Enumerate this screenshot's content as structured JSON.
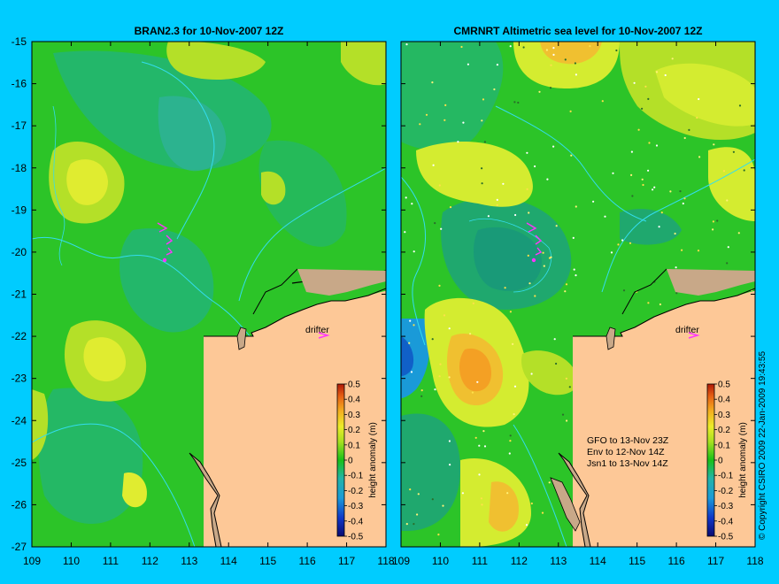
{
  "left_panel": {
    "title": "BRAN2.3 for 10-Nov-2007 12Z",
    "drifter_label": "drifter",
    "colorbar_label": "height anomaly (m)"
  },
  "right_panel": {
    "title": "CMRNRT Altimetric sea level  for 10-Nov-2007 12Z",
    "drifter_label": "drifter",
    "colorbar_label": "height anomaly (m)",
    "satellite_notes": [
      "GFO to 13-Nov 23Z",
      "Env to 12-Nov 14Z",
      "Jsn1 to 13-Nov 14Z"
    ]
  },
  "copyright": "© Copyright CSIRO 2009   22-Jan-2009 19:43:55",
  "y_ticks": [
    "-15",
    "-16",
    "-17",
    "-18",
    "-19",
    "-20",
    "-21",
    "-22",
    "-23",
    "-24",
    "-25",
    "-26",
    "-27"
  ],
  "x_ticks": [
    "109",
    "110",
    "111",
    "112",
    "113",
    "114",
    "115",
    "116",
    "117",
    "118"
  ],
  "colorbar_ticks": [
    "0.5",
    "0.4",
    "0.3",
    "0.2",
    "0.1",
    "0",
    "-0.1",
    "-0.2",
    "-0.3",
    "-0.4",
    "-0.5"
  ],
  "colors": {
    "background": "#00ccff",
    "land": "#fdc897",
    "coastline": "#000000",
    "contour": "#33ddee",
    "drifter": "#ff33ff"
  },
  "map_extent": {
    "lon": [
      109,
      118
    ],
    "lat": [
      -27,
      -15
    ]
  }
}
